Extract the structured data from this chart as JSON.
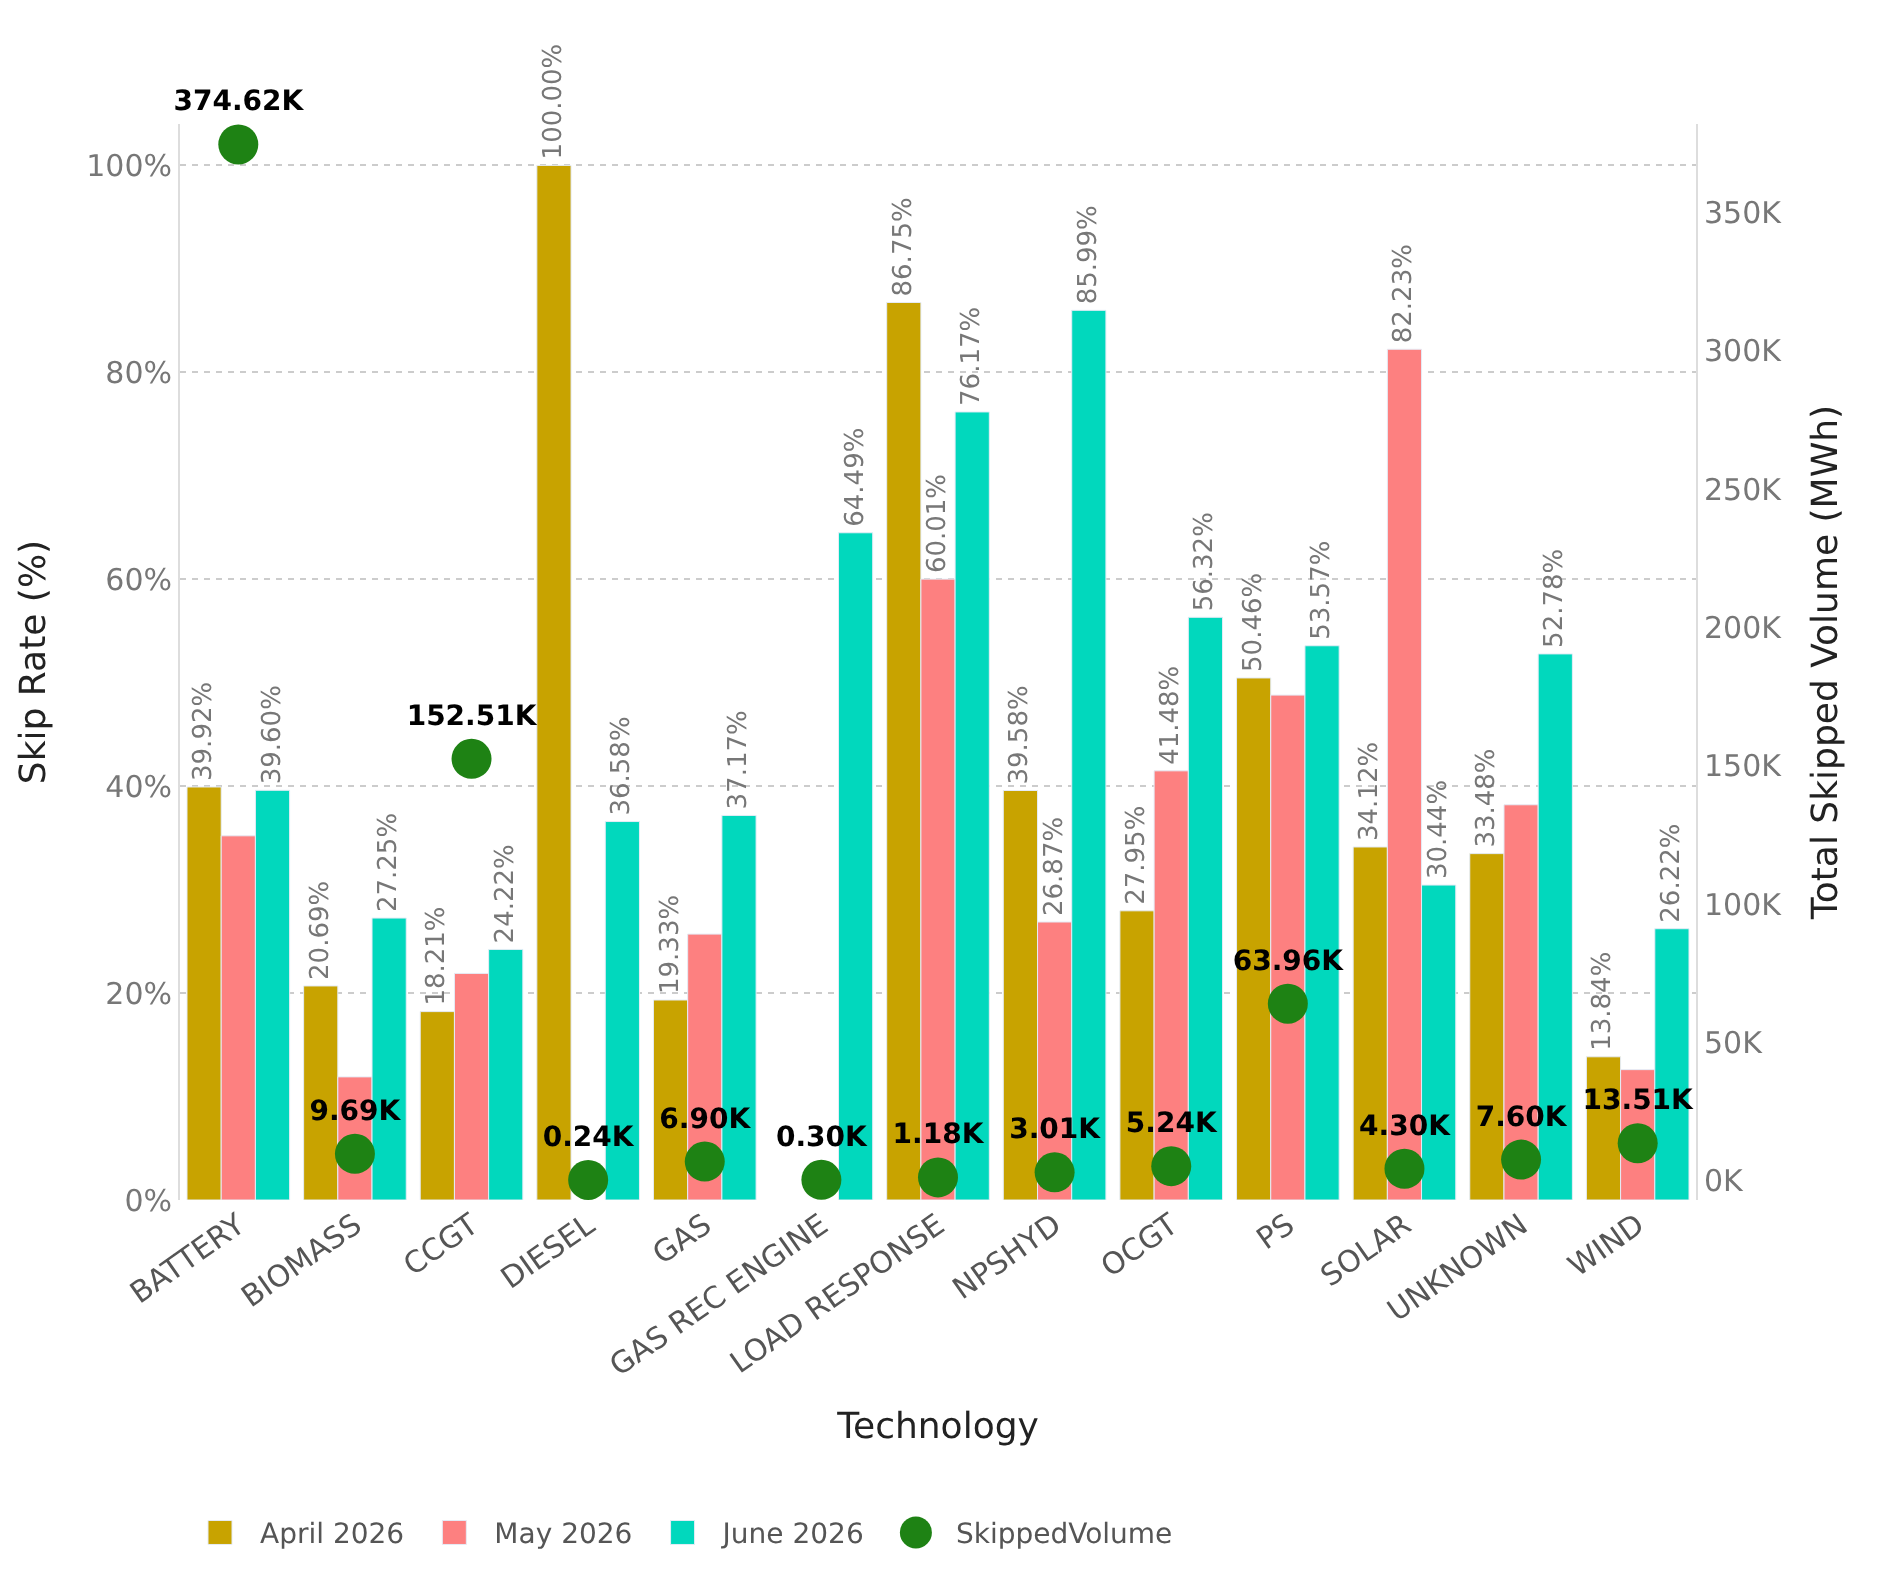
{
  "chart_data": {
    "type": "bar",
    "xlabel": "Technology",
    "ylabel": "Skip Rate (%)",
    "y2label": "Total Skipped Volume (MWh)",
    "categories": [
      "BATTERY",
      "BIOMASS",
      "CCGT",
      "DIESEL",
      "GAS",
      "GAS REC ENGINE",
      "LOAD RESPONSE",
      "NPSHYD",
      "OCGT",
      "PS",
      "SOLAR",
      "UNKNOWN",
      "WIND"
    ],
    "series": [
      {
        "name": "April 2026",
        "color": "#c8a300",
        "values": [
          39.92,
          20.69,
          18.21,
          100.0,
          19.33,
          null,
          86.75,
          39.58,
          27.95,
          50.46,
          34.12,
          33.48,
          13.84
        ],
        "value_labels": [
          "39.92%",
          "20.69%",
          "18.21%",
          "100.00%",
          "19.33%",
          null,
          "86.75%",
          "39.58%",
          "27.95%",
          "50.46%",
          "34.12%",
          "33.48%",
          "13.84%"
        ]
      },
      {
        "name": "May 2026",
        "color": "#fd8080",
        "values": [
          35.2,
          11.9,
          21.9,
          null,
          25.7,
          null,
          60.01,
          26.87,
          41.48,
          48.8,
          82.23,
          38.2,
          12.6
        ],
        "value_labels": [
          null,
          null,
          null,
          null,
          null,
          null,
          "60.01%",
          "26.87%",
          "41.48%",
          null,
          "82.23%",
          null,
          null
        ]
      },
      {
        "name": "June 2026",
        "color": "#01d8bd",
        "values": [
          39.6,
          27.25,
          24.22,
          36.58,
          37.17,
          64.49,
          76.17,
          85.99,
          56.32,
          53.57,
          30.44,
          52.78,
          26.22
        ],
        "value_labels": [
          "39.60%",
          "27.25%",
          "24.22%",
          "36.58%",
          "37.17%",
          "64.49%",
          "76.17%",
          "85.99%",
          "56.32%",
          "53.57%",
          "30.44%",
          "52.78%",
          "26.22%"
        ]
      },
      {
        "name": "SkippedVolume",
        "type": "scatter",
        "axis": "y2",
        "marker": "circle",
        "color": "#1e8214",
        "values": [
          374620,
          9690,
          152510,
          240,
          6900,
          300,
          1180,
          3010,
          5240,
          63960,
          4300,
          7600,
          13510
        ],
        "value_labels": [
          "374.62K",
          "9.69K",
          "152.51K",
          "0.24K",
          "6.90K",
          "0.30K",
          "1.18K",
          "3.01K",
          "5.24K",
          "63.96K",
          "4.30K",
          "7.60K",
          "13.51K"
        ]
      }
    ],
    "ylim": [
      0,
      104
    ],
    "yticks": [
      {
        "value": 0,
        "label": "0%"
      },
      {
        "value": 20,
        "label": "20%"
      },
      {
        "value": 40,
        "label": "40%"
      },
      {
        "value": 60,
        "label": "60%"
      },
      {
        "value": 80,
        "label": "80%"
      },
      {
        "value": 100,
        "label": "100%"
      }
    ],
    "y2lim": [
      -7000,
      382000
    ],
    "y2ticks": [
      {
        "value": 0,
        "label": "0K"
      },
      {
        "value": 50000,
        "label": "50K"
      },
      {
        "value": 100000,
        "label": "100K"
      },
      {
        "value": 150000,
        "label": "150K"
      },
      {
        "value": 200000,
        "label": "200K"
      },
      {
        "value": 250000,
        "label": "250K"
      },
      {
        "value": 300000,
        "label": "300K"
      },
      {
        "value": 350000,
        "label": "350K"
      }
    ],
    "grid": "y",
    "legend": "bottom left"
  }
}
